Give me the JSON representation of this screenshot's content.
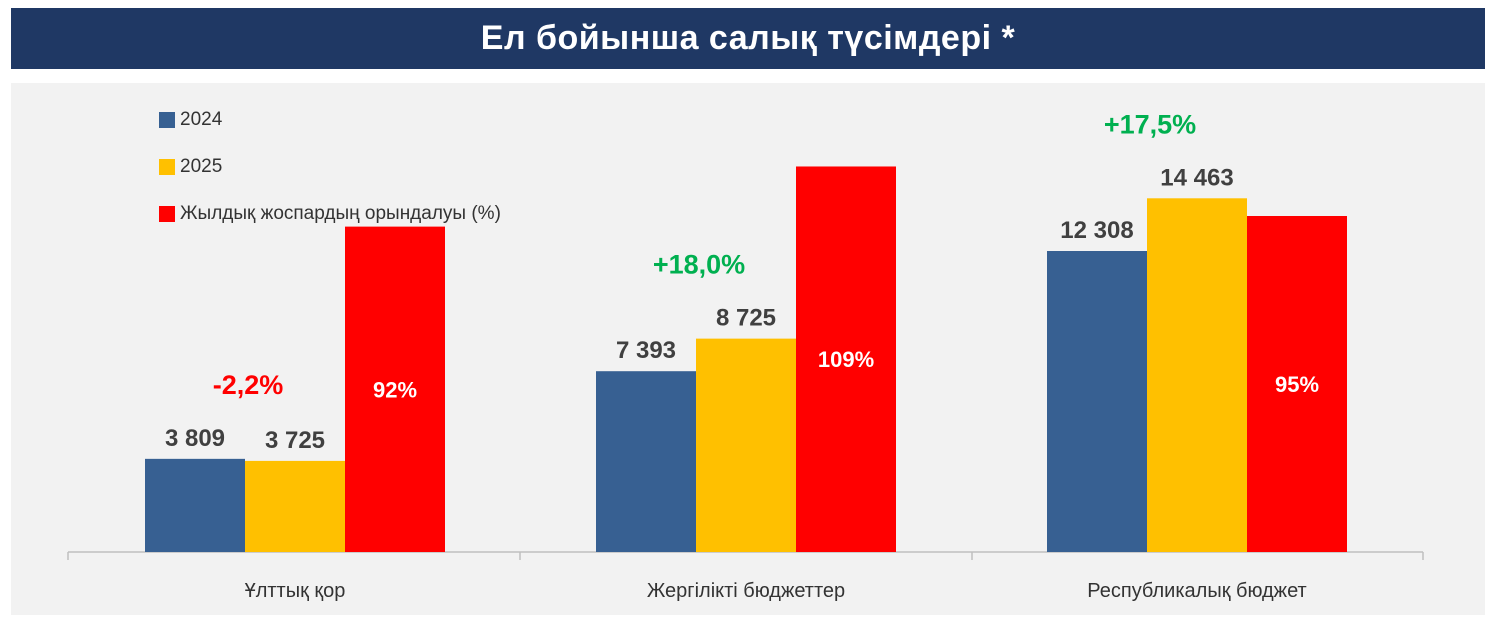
{
  "title": "Ел бойынша салық түсімдері *",
  "colors": {
    "2024": "#376092",
    "2025": "#ffc000",
    "plan": "#ff0000",
    "positive": "#00b050",
    "negative": "#ff0000",
    "title_bg": "#1f3864"
  },
  "legend": [
    {
      "label": "2024",
      "color": "#376092"
    },
    {
      "label": "2025",
      "color": "#ffc000"
    },
    {
      "label": "Жылдық жоспардың орындалуы  (%)",
      "color": "#ff0000"
    }
  ],
  "chart_data": {
    "type": "bar",
    "categories": [
      "Ұлттық қор",
      "Жергілікті бюджеттер",
      "Республикалық бюджет"
    ],
    "series": [
      {
        "name": "2024",
        "values": [
          3809,
          7393,
          12308
        ],
        "labels": [
          "3 809",
          "7 393",
          "12 308"
        ]
      },
      {
        "name": "2025",
        "values": [
          3725,
          8725,
          14463
        ],
        "labels": [
          "3 725",
          "8 725",
          "14 463"
        ]
      },
      {
        "name": "Жылдық жоспардың орындалуы  (%)",
        "values": [
          92,
          109,
          95
        ],
        "labels": [
          "92%",
          "109%",
          "95%"
        ]
      }
    ],
    "growth": [
      "-2,2%",
      "+18,0%",
      "+17,5%"
    ],
    "growth_sign": [
      "negative",
      "positive",
      "positive"
    ],
    "title": "Ел бойынша салық түсімдері *",
    "xlabel": "",
    "ylabel": "",
    "grid": false,
    "legend_position": "top-left"
  }
}
